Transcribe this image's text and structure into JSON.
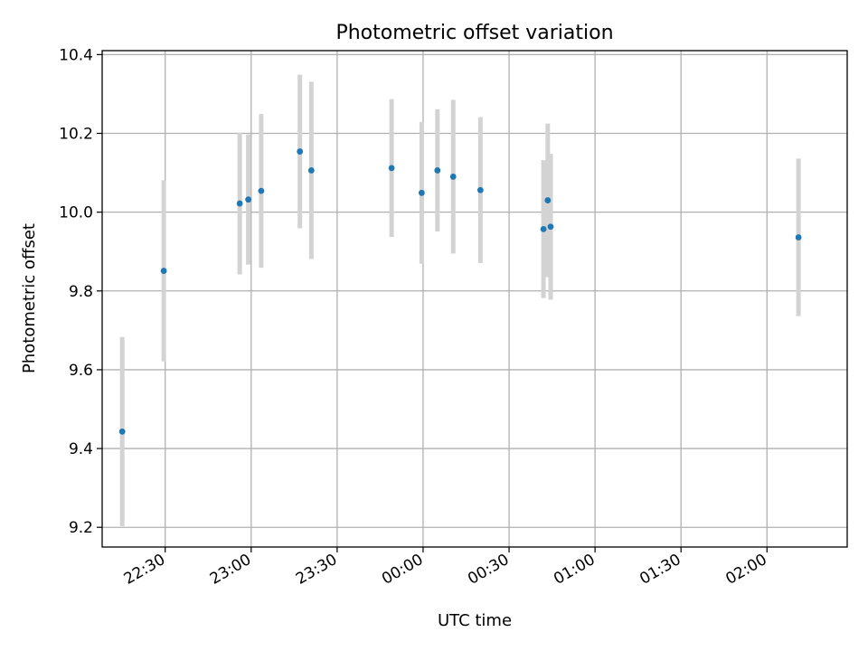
{
  "chart_data": {
    "type": "scatter",
    "title": "Photometric offset variation",
    "xlabel": "UTC time",
    "ylabel": "Photometric offset",
    "x_ticks": [
      "22:30",
      "23:00",
      "23:30",
      "00:00",
      "00:30",
      "01:00",
      "01:30",
      "02:00"
    ],
    "y_ticks": [
      "9.2",
      "9.4",
      "9.6",
      "9.8",
      "10.0",
      "10.2",
      "10.4"
    ],
    "x_unit": "UTC time",
    "xlim": [
      "22:08",
      "02:28"
    ],
    "ylim": [
      9.15,
      10.41
    ],
    "grid": true,
    "points": [
      {
        "x": "22:15",
        "y": 9.443,
        "err": 0.24
      },
      {
        "x": "22:29.5",
        "y": 9.851,
        "err": 0.23
      },
      {
        "x": "22:56",
        "y": 10.022,
        "err": 0.18
      },
      {
        "x": "22:59",
        "y": 10.032,
        "err": 0.165
      },
      {
        "x": "23:03.5",
        "y": 10.054,
        "err": 0.195
      },
      {
        "x": "23:17",
        "y": 10.154,
        "err": 0.195
      },
      {
        "x": "23:21",
        "y": 10.106,
        "err": 0.225
      },
      {
        "x": "23:49",
        "y": 10.112,
        "err": 0.175
      },
      {
        "x": "23:59.5",
        "y": 10.049,
        "err": 0.18
      },
      {
        "x": "00:05",
        "y": 10.106,
        "err": 0.155
      },
      {
        "x": "00:10.5",
        "y": 10.09,
        "err": 0.195
      },
      {
        "x": "00:20",
        "y": 10.056,
        "err": 0.185
      },
      {
        "x": "00:42",
        "y": 9.957,
        "err": 0.175
      },
      {
        "x": "00:43.5",
        "y": 10.03,
        "err": 0.195
      },
      {
        "x": "00:44.5",
        "y": 9.963,
        "err": 0.185
      },
      {
        "x": "02:11",
        "y": 9.936,
        "err": 0.2
      }
    ],
    "colors": {
      "point": "#1f77b4",
      "errorbar": "#d3d3d3"
    }
  }
}
